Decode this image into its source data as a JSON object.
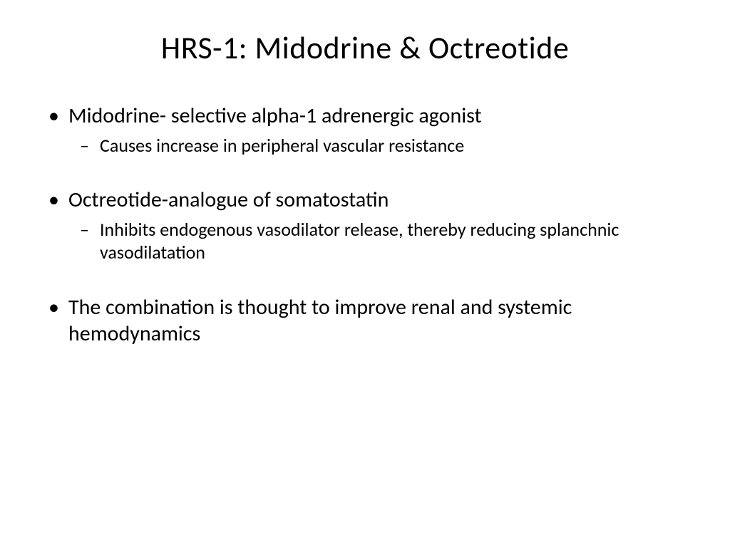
{
  "slide": {
    "title": "HRS-1: Midodrine & Octreotide",
    "bullets": [
      {
        "text": "Midodrine- selective alpha-1 adrenergic agonist",
        "sub": [
          "Causes increase in peripheral vascular resistance"
        ]
      },
      {
        "text": "Octreotide-analogue of somatostatin",
        "sub": [
          "Inhibits endogenous vasodilator release, thereby reducing splanchnic vasodilatation"
        ]
      },
      {
        "text": "The combination is thought to improve renal and systemic hemodynamics",
        "sub": []
      }
    ]
  },
  "style": {
    "background_color": "#ffffff",
    "text_color": "#000000",
    "font_family": "Calibri",
    "title_fontsize_pt": 40,
    "bullet_fontsize_pt": 28,
    "subbullet_fontsize_pt": 24,
    "title_align": "center"
  }
}
